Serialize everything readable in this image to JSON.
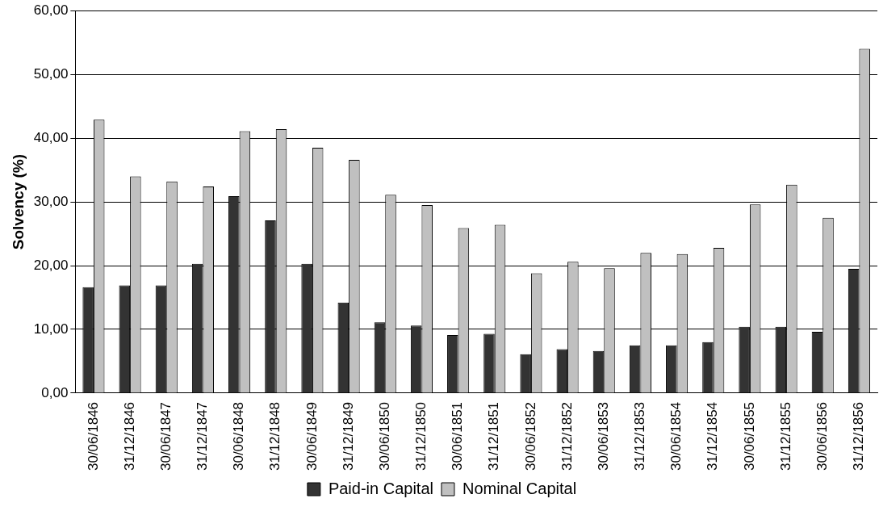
{
  "chart_data": {
    "type": "bar",
    "ylabel": "Solvency (%)",
    "categories": [
      "30/06/1846",
      "31/12/1846",
      "30/06/1847",
      "31/12/1847",
      "30/06/1848",
      "31/12/1848",
      "30/06/1849",
      "31/12/1849",
      "30/06/1850",
      "31/12/1850",
      "30/06/1851",
      "31/12/1851",
      "30/06/1852",
      "31/12/1852",
      "30/06/1853",
      "31/12/1853",
      "30/06/1854",
      "31/12/1854",
      "30/06/1855",
      "31/12/1855",
      "30/06/1856",
      "31/12/1856"
    ],
    "series": [
      {
        "name": "Paid-in Capital",
        "color": "#333333",
        "values": [
          16.6,
          16.9,
          16.9,
          20.3,
          30.9,
          27.1,
          20.3,
          14.2,
          11.1,
          10.6,
          9.1,
          9.3,
          6.1,
          6.9,
          6.6,
          7.5,
          7.5,
          8.0,
          10.4,
          10.4,
          9.6,
          19.5
        ]
      },
      {
        "name": "Nominal Capital",
        "color": "#c0c0c0",
        "values": [
          42.9,
          34.0,
          33.2,
          32.4,
          41.1,
          41.4,
          38.5,
          36.6,
          31.1,
          29.5,
          25.9,
          26.4,
          18.8,
          20.6,
          19.6,
          22.0,
          21.8,
          22.8,
          29.6,
          32.7,
          27.5,
          54.0
        ]
      }
    ],
    "ylim": [
      0,
      60
    ],
    "yticks": [
      {
        "value": 0,
        "label": "0,00"
      },
      {
        "value": 10,
        "label": "10,00"
      },
      {
        "value": 20,
        "label": "20,00"
      },
      {
        "value": 30,
        "label": "30,00"
      },
      {
        "value": 40,
        "label": "40,00"
      },
      {
        "value": 50,
        "label": "50,00"
      },
      {
        "value": 60,
        "label": "60,00"
      }
    ],
    "grid": "y",
    "legend": "bottom"
  }
}
